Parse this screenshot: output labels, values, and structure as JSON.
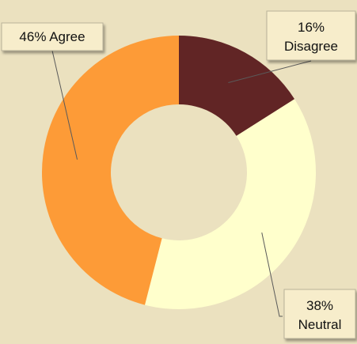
{
  "chart_data": {
    "type": "pie",
    "donut": true,
    "title": "",
    "slices": [
      {
        "category": "Disagree",
        "value": 16,
        "color": "#612525",
        "label_pct": "16%",
        "label_name": "Disagree"
      },
      {
        "category": "Neutral",
        "value": 38,
        "color": "#ffffcc",
        "label_pct": "38%",
        "label_name": "Neutral"
      },
      {
        "category": "Agree",
        "value": 46,
        "color": "#fd9b37",
        "label_pct": "46% Agree",
        "label_name": ""
      }
    ],
    "legend": "none",
    "colors": {
      "background": "#ebe1bf",
      "label_background": "#f7edcb"
    }
  }
}
